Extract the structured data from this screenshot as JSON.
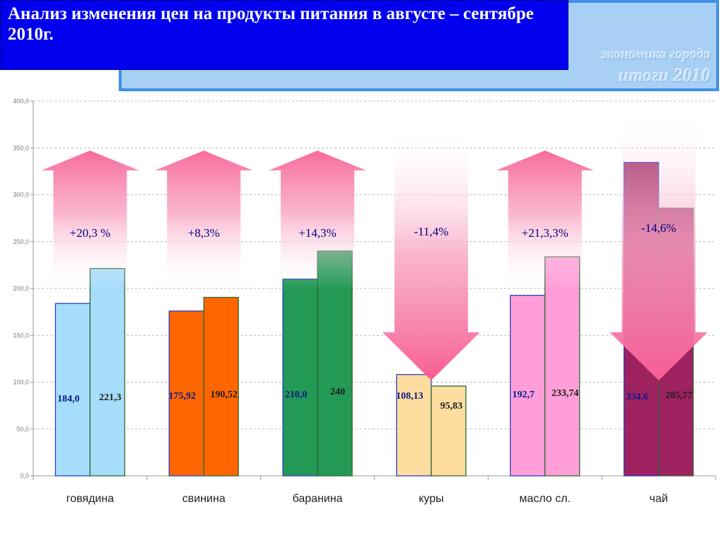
{
  "header": {
    "title": "Анализ изменения цен на продукты питания в августе – сентябре 2010г."
  },
  "brand": {
    "line1": "экономика города",
    "line2": "итоги 2010"
  },
  "colors": {
    "header_bg": "#0000ee",
    "brand_panel": "#a8d0f4",
    "arrow_pink": "#f86b9c"
  },
  "chart_data": {
    "type": "bar",
    "categories": [
      "говядина",
      "свинина",
      "баранина",
      "куры",
      "масло сл.",
      "чай"
    ],
    "series": [
      {
        "values": [
          184.0,
          175.92,
          210.0,
          108.13,
          192.7,
          334.6
        ]
      },
      {
        "values": [
          221.3,
          190.52,
          240,
          95.83,
          233.74,
          285.77
        ]
      }
    ],
    "value_labels": [
      [
        "184,0",
        "221,3"
      ],
      [
        "175,92",
        "190,52"
      ],
      [
        "210,0",
        "240"
      ],
      [
        "108,13",
        "95,83"
      ],
      [
        "192,7",
        "233,74"
      ],
      [
        "334,6",
        "285,77"
      ]
    ],
    "change_labels": [
      "+20,3 %",
      "+8,3%",
      "+14,3%",
      "-11,4%",
      "+21,3,3%",
      "-14,6%"
    ],
    "change_direction": [
      "up",
      "up",
      "up",
      "down",
      "up",
      "down"
    ],
    "bar_colors": [
      [
        "#a5ddfa",
        "#a5ddfa"
      ],
      [
        "#ff6600",
        "#ff6600"
      ],
      [
        "#229955",
        "#229955"
      ],
      [
        "#ffdda0",
        "#ffdda0"
      ],
      [
        "#ff9ed8",
        "#ff9ed8"
      ],
      [
        "#9e2260",
        "#9e2260"
      ]
    ],
    "y_ticks": [
      "0,0",
      "50,0",
      "100,0",
      "150,0",
      "200,0",
      "250,0",
      "300,0",
      "350,0",
      "400,0"
    ],
    "ylim": [
      0,
      400
    ],
    "grid": true,
    "visible_max": 400
  }
}
